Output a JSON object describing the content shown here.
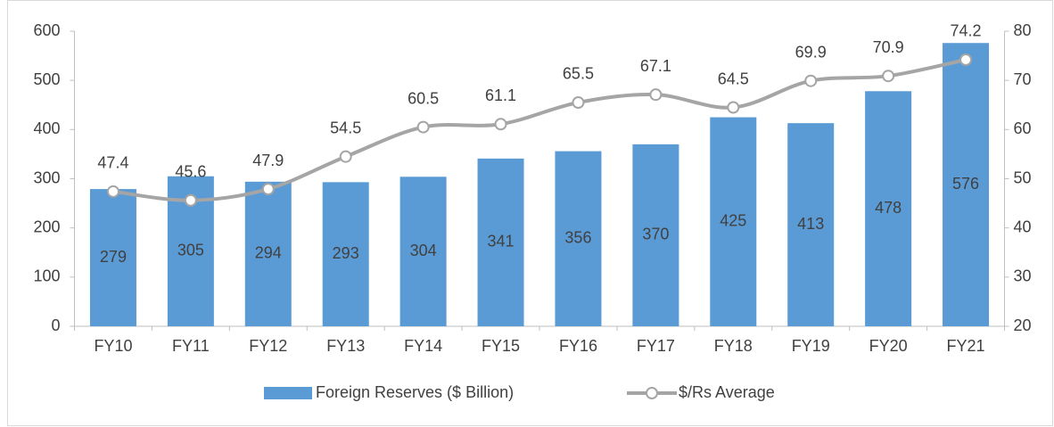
{
  "chart_data": {
    "type": "bar",
    "categories": [
      "FY10",
      "FY11",
      "FY12",
      "FY13",
      "FY14",
      "FY15",
      "FY16",
      "FY17",
      "FY18",
      "FY19",
      "FY20",
      "FY21"
    ],
    "series": [
      {
        "name": "Foreign Reserves ($ Billion)",
        "type": "bar",
        "color": "#5b9bd5",
        "values": [
          279,
          305,
          294,
          293,
          304,
          341,
          356,
          370,
          425,
          413,
          478,
          576
        ]
      },
      {
        "name": "$/Rs Average",
        "type": "line",
        "axis": "y2",
        "color": "#a5a5a5",
        "values": [
          47.4,
          45.6,
          47.9,
          54.5,
          60.5,
          61.1,
          65.5,
          67.1,
          64.5,
          69.9,
          70.9,
          74.2
        ]
      }
    ],
    "ylim": [
      0,
      600
    ],
    "yticks": [
      0,
      100,
      200,
      300,
      400,
      500,
      600
    ],
    "y2lim": [
      20,
      80
    ],
    "y2ticks": [
      20,
      30,
      40,
      50,
      60,
      70,
      80
    ],
    "grid": false,
    "legend": "bottom"
  }
}
